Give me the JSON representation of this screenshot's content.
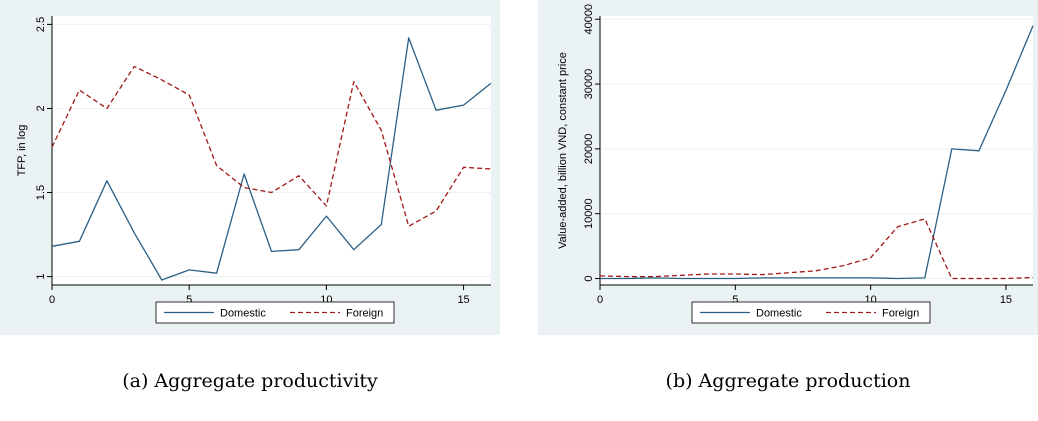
{
  "chart_data": [
    {
      "type": "line",
      "caption": "(a) Aggregate productivity",
      "xlabel": "year",
      "ylabel": "TFP, in log",
      "xlim": [
        0,
        16
      ],
      "ylim": [
        0.95,
        2.55
      ],
      "xticks": [
        0,
        5,
        10,
        15
      ],
      "yticks": [
        1,
        1.5,
        2,
        2.5
      ],
      "ytick_labels": [
        "1",
        "1.5",
        "2",
        "2.5"
      ],
      "grid": true,
      "legend_position": "bottom",
      "series": [
        {
          "name": "Domestic",
          "color": "#2b5f85",
          "dash": "solid",
          "x": [
            0,
            1,
            2,
            3,
            4,
            5,
            6,
            7,
            8,
            9,
            10,
            11,
            12,
            13,
            14,
            15,
            16
          ],
          "values": [
            1.18,
            1.21,
            1.57,
            1.26,
            0.98,
            1.04,
            1.02,
            1.61,
            1.15,
            1.16,
            1.36,
            1.16,
            1.31,
            2.42,
            1.99,
            2.02,
            2.15
          ]
        },
        {
          "name": "Foreign",
          "color": "#a01818",
          "dash": "dashed",
          "x": [
            0,
            1,
            2,
            3,
            4,
            5,
            6,
            7,
            8,
            9,
            10,
            11,
            12,
            13,
            14,
            15,
            16
          ],
          "values": [
            1.77,
            2.11,
            2.0,
            2.25,
            2.17,
            2.08,
            1.66,
            1.53,
            1.5,
            1.6,
            1.42,
            2.16,
            1.87,
            1.3,
            1.39,
            1.65,
            1.64
          ]
        }
      ]
    },
    {
      "type": "line",
      "caption": "(b) Aggregate production",
      "xlabel": "year",
      "ylabel": "Value-added, billion VND, constant price",
      "xlim": [
        0,
        16
      ],
      "ylim": [
        -1000,
        40500
      ],
      "xticks": [
        0,
        5,
        10,
        15
      ],
      "yticks": [
        0,
        10000,
        20000,
        30000,
        40000
      ],
      "ytick_labels": [
        "0",
        "10000",
        "20000",
        "30000",
        "40000"
      ],
      "grid": true,
      "legend_position": "bottom",
      "series": [
        {
          "name": "Domestic",
          "color": "#2b5f85",
          "dash": "solid",
          "x": [
            0,
            1,
            2,
            3,
            4,
            5,
            6,
            7,
            8,
            9,
            10,
            11,
            12,
            13,
            14,
            15,
            16
          ],
          "values": [
            0,
            0,
            100,
            0,
            0,
            0,
            100,
            100,
            100,
            100,
            100,
            0,
            100,
            20000,
            19700,
            29000,
            39000
          ]
        },
        {
          "name": "Foreign",
          "color": "#a01818",
          "dash": "dashed",
          "x": [
            0,
            1,
            2,
            3,
            4,
            5,
            6,
            7,
            8,
            9,
            10,
            11,
            12,
            13,
            14,
            15,
            16
          ],
          "values": [
            400,
            300,
            300,
            500,
            700,
            700,
            600,
            900,
            1200,
            2000,
            3200,
            8000,
            9200,
            0,
            0,
            0,
            150
          ]
        }
      ]
    }
  ]
}
